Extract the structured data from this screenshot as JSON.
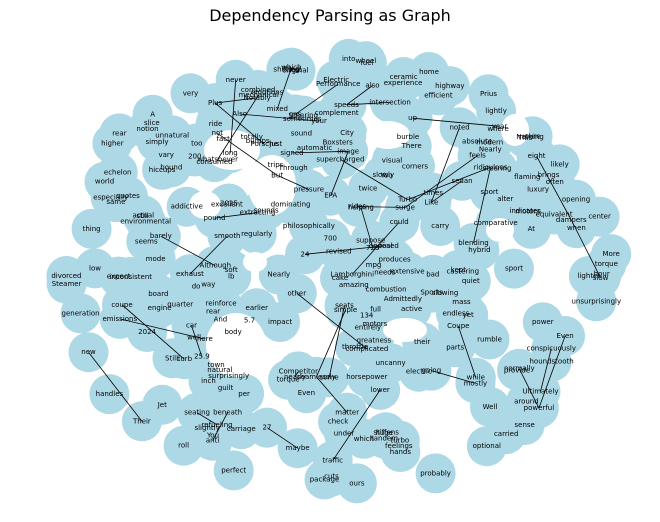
{
  "title": "Dependency Parsing as Graph",
  "colors": {
    "node": "#add8e6",
    "edge": "#000000",
    "background": "#ffffff"
  },
  "words": [
    "hour",
    "Competitor",
    "Steering",
    "anti",
    "complement",
    "Also",
    "You",
    "Jet",
    "philosophically",
    "totally",
    "often",
    "mostly",
    "luxury",
    "too",
    "likely",
    "town",
    "corners",
    "electric",
    "car",
    "indicates",
    "original",
    "yet",
    "still",
    "And",
    "real",
    "natural",
    "very",
    "Although",
    "here",
    "inch",
    "beneath",
    "excellent",
    "sport",
    "absolute",
    "200",
    "low",
    "comparative",
    "Through",
    "addictive",
    "per",
    "ceramic",
    "around",
    "rumble",
    "motors",
    "castering",
    "extracting",
    "emissions",
    "carried",
    "Nothing",
    "pure",
    "supercharged",
    "quiet",
    "cake",
    "2025",
    "your",
    "But",
    "Like",
    "Their",
    "while",
    "slow",
    "A",
    "unsurprisingly",
    "probably",
    "same",
    "seamlessly",
    "huge",
    "Even",
    "Notably",
    "Nearly",
    "powerful",
    "Well",
    "729",
    "This",
    "torque",
    "City",
    "traffic",
    "sedan",
    "matter",
    "ridiculous",
    "seating",
    "automatic",
    "sound",
    "lower",
    "More",
    "slice",
    "carry",
    "sounds",
    "expect",
    "fuel",
    "way",
    "reinforce",
    "fact",
    "actual",
    "Boxsters",
    "700",
    "27",
    "hands",
    "nearly",
    "long",
    "houndstooth",
    "highway",
    "flaming",
    "mpg",
    "speeds",
    "shifting",
    "Sports",
    "active",
    "amazing",
    "higher",
    "complicated",
    "feelings",
    "check",
    "sport",
    "Plus",
    "curb",
    "endless",
    "home",
    "optional",
    "soft",
    "tandem",
    "entirely",
    "maybe",
    "environmental",
    "extensive",
    "well",
    "Lamborghini",
    "earlier",
    "ours",
    "also",
    "new",
    "when",
    "not",
    "guilt",
    "inconsistent",
    "especially",
    "ride",
    "test",
    "Prius",
    "2024",
    "center",
    "impact",
    "roll",
    "emotions",
    "dampers",
    "horsepower",
    "rides",
    "brings",
    "unnatural",
    "seems",
    "feels",
    "times",
    "bumps",
    "body",
    "pound",
    "eight",
    "slightly",
    "could",
    "perfect",
    "bad",
    "other",
    "never",
    "uncanny",
    "equivalent",
    "greatness",
    "24",
    "up",
    "EPA",
    "You",
    "At",
    "echelon",
    "mechanical",
    "regularly",
    "power",
    "which",
    "some",
    "vary",
    "slowly",
    "opposed",
    "Porsche",
    "intersection",
    "helping",
    "alter",
    "There",
    "where",
    "which",
    "Turbo",
    "pressure",
    "sense",
    "produces",
    "Coupe",
    "opening",
    "blending",
    "simple",
    "coupe",
    "going",
    "do",
    "combustion",
    "provide",
    "generation",
    "sometimes",
    "just",
    "rear",
    "wheel",
    "mixed",
    "twice",
    "conspicuously",
    "whatsoever",
    "barely",
    "lb",
    "Admittedly",
    "surprisingly",
    "turbo",
    "full",
    "lighter",
    "suppose",
    "image",
    "handles",
    "revised",
    "kept",
    "consumed",
    "slowing",
    "Performance",
    "cuts",
    "visual",
    "quarter",
    "package",
    "modern",
    "divorced",
    "efficient",
    "into",
    "trips",
    "signed",
    "surge",
    "noted",
    "burble",
    "experience",
    "mass",
    "seats",
    "world",
    "notion",
    "year",
    "stiffens",
    "engine",
    "thing",
    "mode",
    "exhaust",
    "combined",
    "torque",
    "bound",
    "motors",
    "carriage",
    "quotes",
    "smooth",
    "throttle",
    "refueling",
    "Nearly",
    "25.9",
    "5.7",
    "134",
    "board",
    "normally",
    "Stilll",
    "Ultimately",
    "Even",
    "their",
    "rear",
    "hiccups",
    "Electric",
    "Steamer",
    "dominating",
    "simply",
    "steering",
    "hybrid",
    "needs",
    "parts",
    "lightly",
    "gas",
    "under"
  ]
}
